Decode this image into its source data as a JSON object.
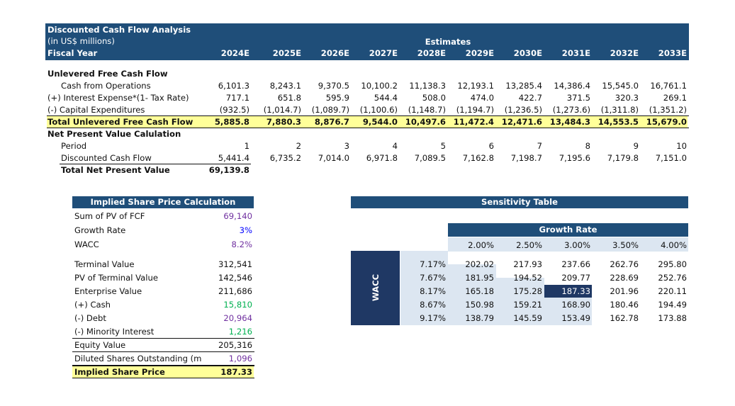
{
  "header": {
    "title": "Discounted Cash Flow Analysis",
    "subtitle": "(in US$ millions)",
    "fiscal_year_label": "Fiscal Year",
    "estimates_label": "Estimates",
    "years": [
      "2024E",
      "2025E",
      "2026E",
      "2027E",
      "2028E",
      "2029E",
      "2030E",
      "2031E",
      "2032E",
      "2033E"
    ]
  },
  "ufcf": {
    "section_title": "Unlevered Free Cash Flow",
    "rows": [
      {
        "label": "Cash from Operations",
        "values": [
          "6,101.3",
          "8,243.1",
          "9,370.5",
          "10,100.2",
          "11,138.3",
          "12,193.1",
          "13,285.4",
          "14,386.4",
          "15,545.0",
          "16,761.1"
        ]
      },
      {
        "label": "(+) Interest Expense*(1- Tax Rate)",
        "values": [
          "717.1",
          "651.8",
          "595.9",
          "544.4",
          "508.0",
          "474.0",
          "422.7",
          "371.5",
          "320.3",
          "269.1"
        ]
      },
      {
        "label": "(-) Capital Expenditures",
        "values": [
          "(932.5)",
          "(1,014.7)",
          "(1,089.7)",
          "(1,100.6)",
          "(1,148.7)",
          "(1,194.7)",
          "(1,236.5)",
          "(1,273.6)",
          "(1,311.8)",
          "(1,351.2)"
        ]
      }
    ],
    "total_label": "Total Unlevered Free Cash Flow",
    "total_values": [
      "5,885.8",
      "7,880.3",
      "8,876.7",
      "9,544.0",
      "10,497.6",
      "11,472.4",
      "12,471.6",
      "13,484.3",
      "14,553.5",
      "15,679.0"
    ]
  },
  "npv": {
    "section_title": "Net Present Value Calulation",
    "period_label": "Period",
    "periods": [
      "1",
      "2",
      "3",
      "4",
      "5",
      "6",
      "7",
      "8",
      "9",
      "10"
    ],
    "dcf_label": "Discounted Cash Flow",
    "dcf_values": [
      "5,441.4",
      "6,735.2",
      "7,014.0",
      "6,971.8",
      "7,089.5",
      "7,162.8",
      "7,198.7",
      "7,195.6",
      "7,179.8",
      "7,151.0"
    ],
    "total_label": "Total Net Present Value",
    "total_value": "69,139.8"
  },
  "implied": {
    "title": "Implied Share Price Calculation",
    "rows_top": [
      {
        "label": "Sum of PV of FCF",
        "value": "69,140",
        "color": "purple"
      },
      {
        "label": "Growth Rate",
        "value": "3%",
        "color": "blue"
      },
      {
        "label": "WACC",
        "value": "8.2%",
        "color": "purple"
      }
    ],
    "rows_bottom": [
      {
        "label": "Terminal Value",
        "value": "312,541",
        "color": "black"
      },
      {
        "label": "PV of Terminal Value",
        "value": "142,546",
        "color": "black"
      },
      {
        "label": "Enterprise Value",
        "value": "211,686",
        "color": "black"
      },
      {
        "label": "(+) Cash",
        "value": "15,810",
        "color": "green"
      },
      {
        "label": "(-) Debt",
        "value": "20,964",
        "color": "purple"
      },
      {
        "label": "(-) Minority Interest",
        "value": "1,216",
        "color": "green"
      },
      {
        "label": "Equity Value",
        "value": "205,316",
        "color": "black"
      },
      {
        "label": "Diluted Shares Outstanding (m",
        "value": "1,096",
        "color": "purple"
      }
    ],
    "final_label": "Implied Share Price",
    "final_value": "187.33"
  },
  "sensitivity": {
    "title": "Sensitivity Table",
    "growth_label": "Growth Rate",
    "wacc_label": "WACC",
    "growth_rates": [
      "2.00%",
      "2.50%",
      "3.00%",
      "3.50%",
      "4.00%"
    ],
    "waccs": [
      "7.17%",
      "7.67%",
      "8.17%",
      "8.67%",
      "9.17%"
    ],
    "matrix": [
      [
        "202.02",
        "217.93",
        "237.66",
        "262.76",
        "295.80"
      ],
      [
        "181.95",
        "194.52",
        "209.77",
        "228.69",
        "252.76"
      ],
      [
        "165.18",
        "175.28",
        "187.33",
        "201.96",
        "220.11"
      ],
      [
        "150.98",
        "159.21",
        "168.90",
        "180.46",
        "194.49"
      ],
      [
        "138.79",
        "145.59",
        "153.49",
        "162.78",
        "173.88"
      ]
    ]
  },
  "colors": {
    "header_navy": "#1f4e79",
    "highlight_yellow": "#ffff99",
    "light_blue": "#dce6f1",
    "dark_navy": "#1f3864",
    "purple": "#7030a0",
    "green": "#00b050",
    "blue": "#0000ff"
  }
}
